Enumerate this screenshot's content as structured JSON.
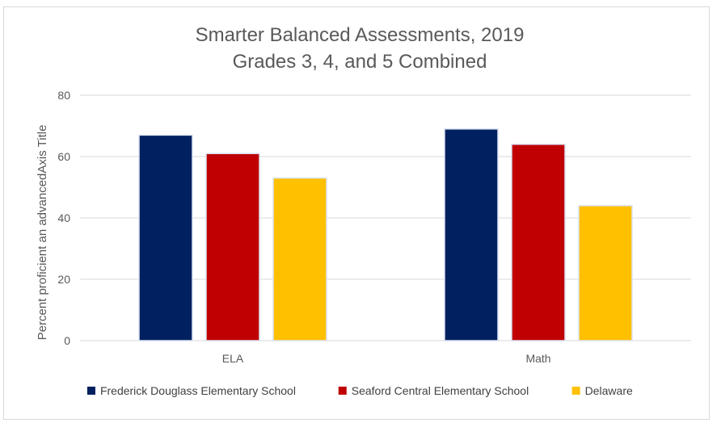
{
  "chart_data": {
    "type": "bar",
    "title_lines": [
      "Smarter Balanced Assessments, 2019",
      "Grades 3, 4, and 5 Combined"
    ],
    "ylabel": "Percent proficient an advancedAxis Title",
    "xlabel": "",
    "categories": [
      "ELA",
      "Math"
    ],
    "ylim": [
      0,
      80
    ],
    "yticks": [
      0,
      20,
      40,
      60,
      80
    ],
    "grid": true,
    "legend_position": "bottom",
    "series": [
      {
        "name": "Frederick Douglass Elementary School",
        "color": "#002060",
        "values": [
          67,
          69
        ]
      },
      {
        "name": "Seaford Central Elementary School",
        "color": "#c00000",
        "values": [
          61,
          64
        ]
      },
      {
        "name": "Delaware",
        "color": "#ffc000",
        "values": [
          53,
          44
        ]
      }
    ]
  }
}
